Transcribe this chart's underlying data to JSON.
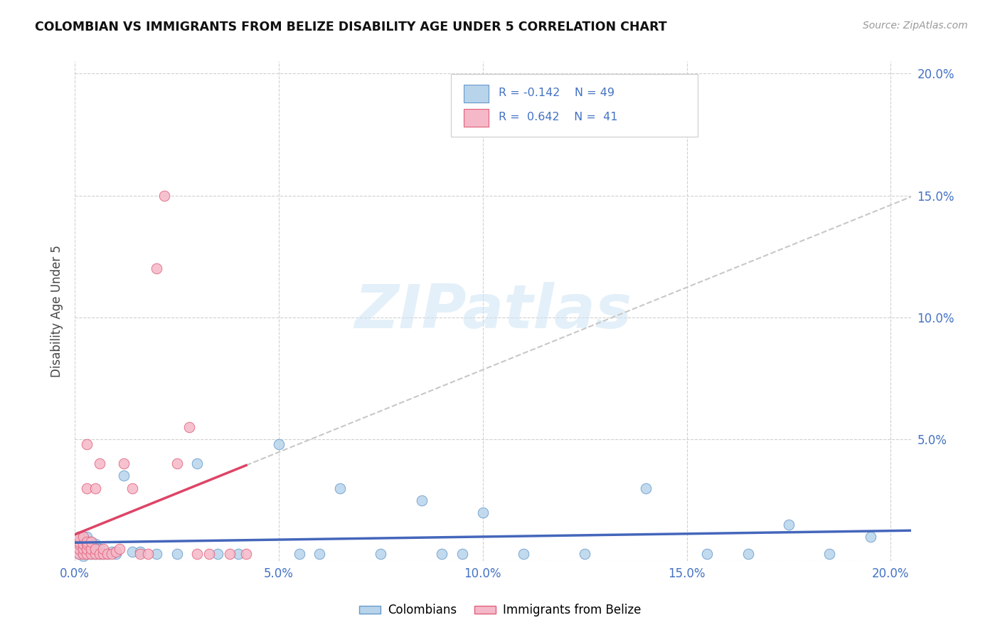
{
  "title": "COLOMBIAN VS IMMIGRANTS FROM BELIZE DISABILITY AGE UNDER 5 CORRELATION CHART",
  "source": "Source: ZipAtlas.com",
  "ylabel": "Disability Age Under 5",
  "xlim": [
    0.0,
    0.205
  ],
  "ylim": [
    0.0,
    0.205
  ],
  "xtick_vals": [
    0.0,
    0.05,
    0.1,
    0.15,
    0.2
  ],
  "ytick_vals": [
    0.0,
    0.05,
    0.1,
    0.15,
    0.2
  ],
  "color_colombians_face": "#b8d4ea",
  "color_colombians_edge": "#6699cc",
  "color_belize_face": "#f5b8c8",
  "color_belize_edge": "#e0607a",
  "color_line_colombians": "#4466bb",
  "color_line_belize": "#dd4466",
  "color_right_ticks": "#4472c4",
  "color_bottom_ticks": "#4472c4",
  "color_title": "#111111",
  "color_source": "#999999",
  "watermark_color": "#cde4f5",
  "background_color": "#ffffff",
  "R_col": -0.142,
  "N_col": 49,
  "R_bel": 0.642,
  "N_bel": 41,
  "colombians_x": [
    0.001,
    0.001,
    0.001,
    0.001,
    0.002,
    0.002,
    0.002,
    0.002,
    0.003,
    0.003,
    0.003,
    0.003,
    0.004,
    0.004,
    0.004,
    0.005,
    0.005,
    0.005,
    0.006,
    0.006,
    0.007,
    0.008,
    0.009,
    0.01,
    0.012,
    0.014,
    0.016,
    0.02,
    0.025,
    0.03,
    0.035,
    0.04,
    0.05,
    0.055,
    0.06,
    0.065,
    0.075,
    0.085,
    0.09,
    0.095,
    0.1,
    0.11,
    0.125,
    0.14,
    0.155,
    0.165,
    0.175,
    0.185,
    0.195
  ],
  "colombians_y": [
    0.003,
    0.005,
    0.007,
    0.01,
    0.002,
    0.004,
    0.006,
    0.009,
    0.003,
    0.005,
    0.007,
    0.01,
    0.003,
    0.005,
    0.008,
    0.003,
    0.005,
    0.007,
    0.003,
    0.005,
    0.003,
    0.003,
    0.004,
    0.003,
    0.035,
    0.004,
    0.004,
    0.003,
    0.003,
    0.04,
    0.003,
    0.003,
    0.048,
    0.003,
    0.003,
    0.03,
    0.003,
    0.025,
    0.003,
    0.003,
    0.02,
    0.003,
    0.003,
    0.03,
    0.003,
    0.003,
    0.015,
    0.003,
    0.01
  ],
  "belize_x": [
    0.001,
    0.001,
    0.001,
    0.001,
    0.001,
    0.002,
    0.002,
    0.002,
    0.002,
    0.003,
    0.003,
    0.003,
    0.003,
    0.003,
    0.003,
    0.004,
    0.004,
    0.004,
    0.005,
    0.005,
    0.005,
    0.006,
    0.006,
    0.007,
    0.007,
    0.008,
    0.009,
    0.01,
    0.011,
    0.012,
    0.014,
    0.016,
    0.018,
    0.02,
    0.022,
    0.025,
    0.028,
    0.03,
    0.033,
    0.038,
    0.042
  ],
  "belize_y": [
    0.003,
    0.005,
    0.007,
    0.008,
    0.01,
    0.003,
    0.005,
    0.007,
    0.01,
    0.003,
    0.005,
    0.007,
    0.008,
    0.03,
    0.048,
    0.003,
    0.005,
    0.008,
    0.003,
    0.005,
    0.03,
    0.003,
    0.04,
    0.003,
    0.005,
    0.003,
    0.003,
    0.004,
    0.005,
    0.04,
    0.03,
    0.003,
    0.003,
    0.12,
    0.15,
    0.04,
    0.055,
    0.003,
    0.003,
    0.003,
    0.003
  ]
}
